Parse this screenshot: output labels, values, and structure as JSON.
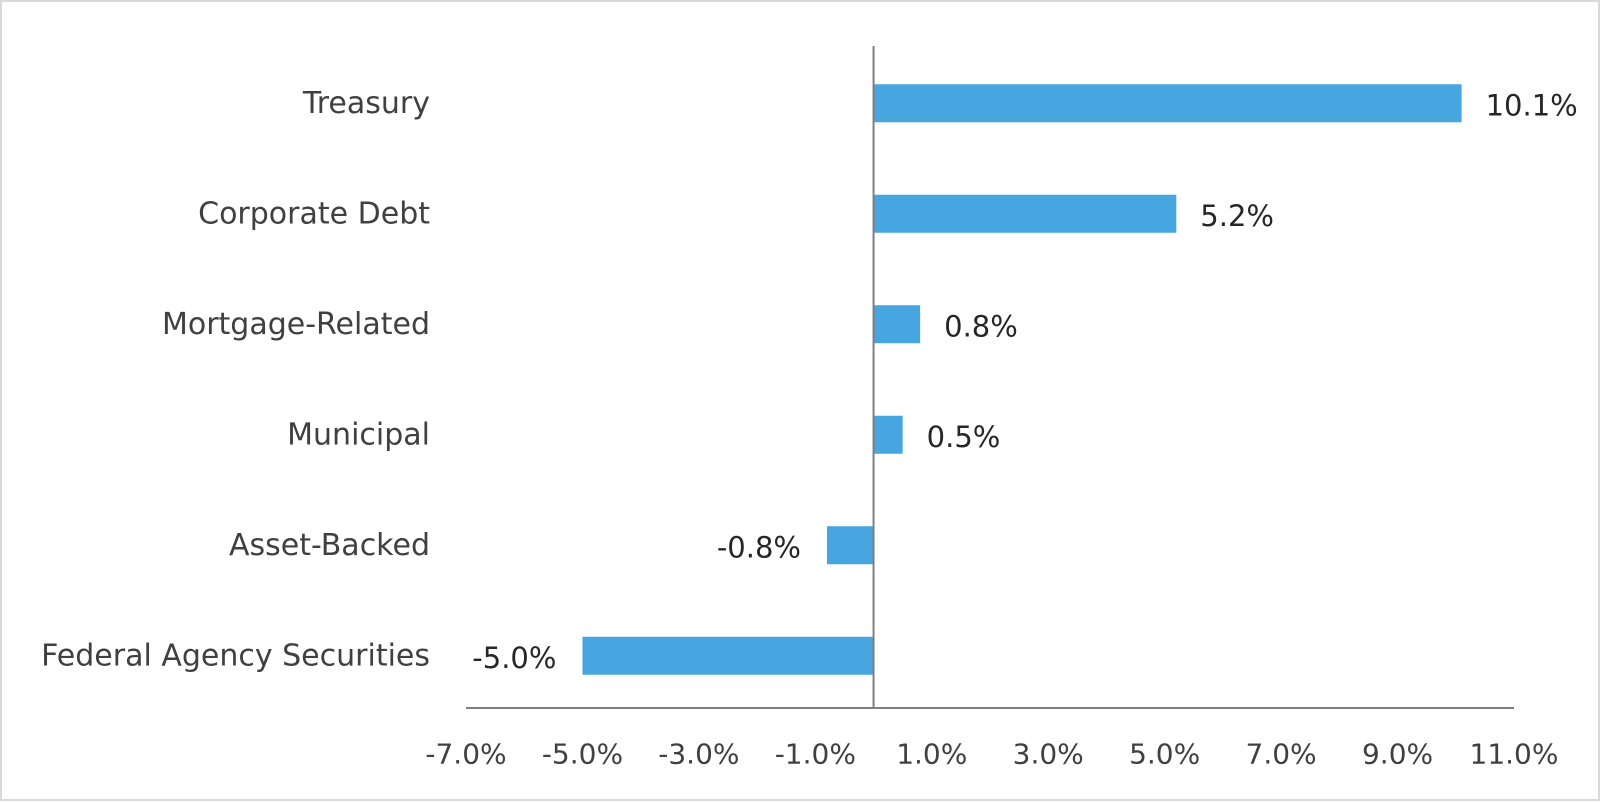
{
  "chart_data": {
    "type": "bar",
    "orientation": "horizontal",
    "categories": [
      "Treasury",
      "Corporate Debt",
      "Mortgage-Related",
      "Municipal",
      "Asset-Backed",
      "Federal Agency Securities"
    ],
    "values": [
      10.1,
      5.2,
      0.8,
      0.5,
      -0.8,
      -5.0
    ],
    "value_labels": [
      "10.1%",
      "5.2%",
      "0.8%",
      "0.5%",
      "-0.8%",
      "-5.0%"
    ],
    "xlim": [
      -7.0,
      11.0
    ],
    "xticks": [
      -7.0,
      -5.0,
      -3.0,
      -1.0,
      1.0,
      3.0,
      5.0,
      7.0,
      9.0,
      11.0
    ],
    "xtick_labels": [
      "-7.0%",
      "-5.0%",
      "-3.0%",
      "-1.0%",
      "1.0%",
      "3.0%",
      "5.0%",
      "7.0%",
      "9.0%",
      "11.0%"
    ],
    "title": "",
    "xlabel": "",
    "ylabel": "",
    "grid": false,
    "legend": "none",
    "bar_color": "#47a5e0",
    "axis_color": "#7f7f7f"
  }
}
